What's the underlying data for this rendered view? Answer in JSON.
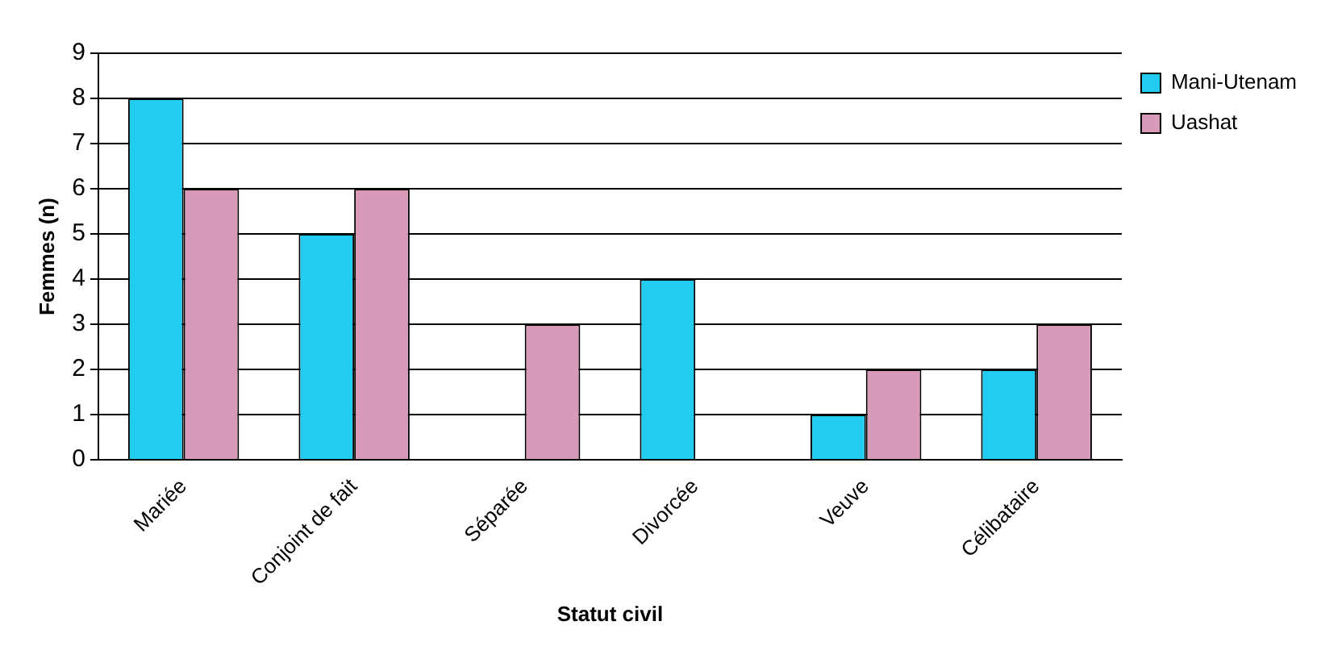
{
  "chart_data": {
    "type": "bar",
    "xlabel": "Statut civil",
    "ylabel": "Femmes (n)",
    "categories": [
      "Mariée",
      "Conjoint de fait",
      "Séparée",
      "Divorcée",
      "Veuve",
      "Célibataire"
    ],
    "series": [
      {
        "name": "Mani-Utenam",
        "color": "#22ccf0",
        "values": [
          8,
          5,
          0,
          4,
          1,
          2
        ]
      },
      {
        "name": "Uashat",
        "color": "#d89ab8",
        "values": [
          6,
          6,
          3,
          0,
          2,
          3
        ]
      }
    ],
    "ylim": [
      0,
      9
    ],
    "yticks": [
      0,
      1,
      2,
      3,
      4,
      5,
      6,
      7,
      8,
      9
    ],
    "grid": "y",
    "legend": "top right"
  }
}
